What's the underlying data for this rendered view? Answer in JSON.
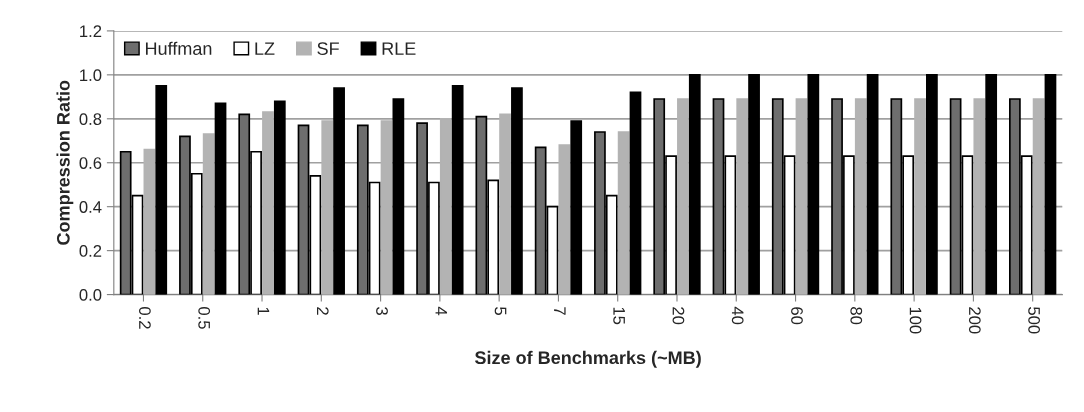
{
  "chart_data": {
    "type": "bar",
    "xlabel": "Size of Benchmarks (~MB)",
    "ylabel": "Compression Ratio",
    "categories": [
      "0.2",
      "0.5",
      "1",
      "2",
      "3",
      "4",
      "5",
      "7",
      "15",
      "20",
      "40",
      "60",
      "80",
      "100",
      "200",
      "500"
    ],
    "series": [
      {
        "name": "Huffman",
        "color": "#6e6e6e",
        "values": [
          0.65,
          0.72,
          0.82,
          0.77,
          0.77,
          0.78,
          0.81,
          0.67,
          0.74,
          0.89,
          0.89,
          0.89,
          0.89,
          0.89,
          0.89,
          0.89
        ]
      },
      {
        "name": "LZ",
        "color": "#ffffff",
        "values": [
          0.45,
          0.55,
          0.65,
          0.54,
          0.51,
          0.51,
          0.52,
          0.4,
          0.45,
          0.63,
          0.63,
          0.63,
          0.63,
          0.63,
          0.63,
          0.63
        ]
      },
      {
        "name": "SF",
        "color": "#b3b3b3",
        "values": [
          0.66,
          0.73,
          0.83,
          0.79,
          0.79,
          0.8,
          0.82,
          0.68,
          0.74,
          0.89,
          0.89,
          0.89,
          0.89,
          0.89,
          0.89,
          0.89
        ]
      },
      {
        "name": "RLE",
        "color": "#000000",
        "values": [
          0.95,
          0.87,
          0.88,
          0.94,
          0.89,
          0.95,
          0.94,
          0.79,
          0.92,
          1.0,
          1.0,
          1.0,
          1.0,
          1.0,
          1.0,
          1.0
        ]
      }
    ],
    "ylim": [
      0,
      1.2
    ],
    "yticks": [
      {
        "value": 0,
        "label": "0.0"
      },
      {
        "value": 0.2,
        "label": "0.2"
      },
      {
        "value": 0.4,
        "label": "0.4"
      },
      {
        "value": 0.6,
        "label": "0.6"
      },
      {
        "value": 0.8,
        "label": "0.8"
      },
      {
        "value": 1.0,
        "label": "1.0"
      },
      {
        "value": 1.2,
        "label": "1.2"
      }
    ],
    "grid": "y",
    "legend": "top left"
  }
}
